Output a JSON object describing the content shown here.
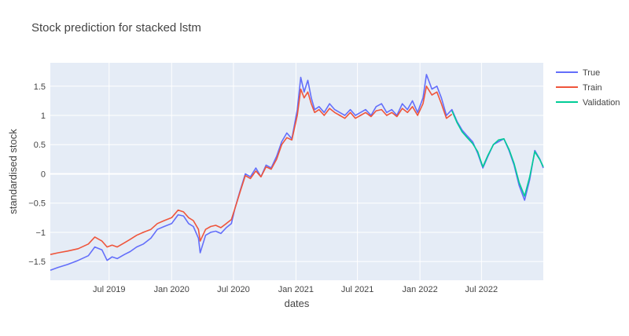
{
  "chart_data": {
    "type": "line",
    "title": "Stock prediction for stacked lstm",
    "xlabel": "dates",
    "ylabel": "standardised stock",
    "x_range": [
      "2019-01-09",
      "2022-12-30"
    ],
    "ylim": [
      -1.82,
      1.9
    ],
    "xticks": [
      {
        "date": "2019-07-01",
        "label": "Jul 2019"
      },
      {
        "date": "2020-01-01",
        "label": "Jan 2020"
      },
      {
        "date": "2020-07-01",
        "label": "Jul 2020"
      },
      {
        "date": "2021-01-01",
        "label": "Jan 2021"
      },
      {
        "date": "2021-07-01",
        "label": "Jul 2021"
      },
      {
        "date": "2022-01-01",
        "label": "Jan 2022"
      },
      {
        "date": "2022-07-01",
        "label": "Jul 2022"
      }
    ],
    "yticks": [
      {
        "value": 1.5,
        "label": "1.5"
      },
      {
        "value": 1,
        "label": "1"
      },
      {
        "value": 0.5,
        "label": "0.5"
      },
      {
        "value": 0,
        "label": "0"
      },
      {
        "value": -0.5,
        "label": "−0.5"
      },
      {
        "value": -1,
        "label": "−1"
      },
      {
        "value": -1.5,
        "label": "−1.5"
      }
    ],
    "grid": true,
    "legend_position": "top-right, outside plot",
    "colors": {
      "plot_bg": "#e5ecf6",
      "grid": "#ffffff",
      "True": "#636efa",
      "Train": "#ef553b",
      "Validation": "#00cc96"
    },
    "series": [
      {
        "name": "True",
        "color": "#636efa",
        "x": [
          "2019-01-09",
          "2019-02-01",
          "2019-03-01",
          "2019-04-01",
          "2019-05-01",
          "2019-05-20",
          "2019-06-10",
          "2019-06-25",
          "2019-07-10",
          "2019-07-25",
          "2019-08-15",
          "2019-09-01",
          "2019-09-20",
          "2019-10-10",
          "2019-11-01",
          "2019-11-20",
          "2019-12-10",
          "2020-01-01",
          "2020-01-20",
          "2020-02-05",
          "2020-02-20",
          "2020-03-05",
          "2020-03-20",
          "2020-03-25",
          "2020-04-10",
          "2020-04-25",
          "2020-05-10",
          "2020-05-25",
          "2020-06-10",
          "2020-06-25",
          "2020-07-05",
          "2020-07-20",
          "2020-08-05",
          "2020-08-20",
          "2020-09-05",
          "2020-09-20",
          "2020-10-05",
          "2020-10-20",
          "2020-11-05",
          "2020-11-20",
          "2020-12-05",
          "2020-12-20",
          "2021-01-05",
          "2021-01-15",
          "2021-01-25",
          "2021-02-05",
          "2021-02-15",
          "2021-02-25",
          "2021-03-10",
          "2021-03-25",
          "2021-04-10",
          "2021-04-25",
          "2021-05-10",
          "2021-05-25",
          "2021-06-10",
          "2021-06-25",
          "2021-07-10",
          "2021-07-25",
          "2021-08-10",
          "2021-08-25",
          "2021-09-10",
          "2021-09-25",
          "2021-10-10",
          "2021-10-25",
          "2021-11-10",
          "2021-11-25",
          "2021-12-10",
          "2021-12-25",
          "2022-01-10",
          "2022-01-20",
          "2022-02-05",
          "2022-02-20",
          "2022-03-05",
          "2022-03-20",
          "2022-04-05",
          "2022-04-20",
          "2022-05-05",
          "2022-05-20",
          "2022-06-05",
          "2022-06-20",
          "2022-07-05",
          "2022-07-20",
          "2022-08-05",
          "2022-08-20",
          "2022-09-05",
          "2022-09-20",
          "2022-10-05",
          "2022-10-20",
          "2022-11-05",
          "2022-11-20",
          "2022-12-05",
          "2022-12-20",
          "2022-12-30"
        ],
        "y": [
          -1.65,
          -1.6,
          -1.55,
          -1.48,
          -1.4,
          -1.25,
          -1.3,
          -1.48,
          -1.42,
          -1.45,
          -1.38,
          -1.33,
          -1.25,
          -1.2,
          -1.1,
          -0.95,
          -0.9,
          -0.85,
          -0.7,
          -0.72,
          -0.85,
          -0.9,
          -1.1,
          -1.35,
          -1.05,
          -1.0,
          -0.98,
          -1.02,
          -0.92,
          -0.85,
          -0.6,
          -0.3,
          0.0,
          -0.05,
          0.1,
          -0.05,
          0.15,
          0.1,
          0.3,
          0.55,
          0.7,
          0.6,
          1.1,
          1.65,
          1.4,
          1.6,
          1.3,
          1.1,
          1.15,
          1.05,
          1.2,
          1.1,
          1.05,
          1.0,
          1.1,
          1.0,
          1.05,
          1.1,
          1.0,
          1.15,
          1.2,
          1.05,
          1.1,
          1.0,
          1.2,
          1.1,
          1.25,
          1.05,
          1.3,
          1.7,
          1.45,
          1.5,
          1.3,
          1.0,
          1.1,
          0.9,
          0.75,
          0.65,
          0.55,
          0.35,
          0.1,
          0.3,
          0.5,
          0.55,
          0.6,
          0.4,
          0.15,
          -0.2,
          -0.45,
          -0.1,
          0.4,
          0.25,
          0.1
        ]
      },
      {
        "name": "Train",
        "color": "#ef553b",
        "x": [
          "2019-01-09",
          "2019-02-01",
          "2019-03-01",
          "2019-04-01",
          "2019-05-01",
          "2019-05-20",
          "2019-06-10",
          "2019-06-25",
          "2019-07-10",
          "2019-07-25",
          "2019-08-15",
          "2019-09-01",
          "2019-09-20",
          "2019-10-10",
          "2019-11-01",
          "2019-11-20",
          "2019-12-10",
          "2020-01-01",
          "2020-01-20",
          "2020-02-05",
          "2020-02-20",
          "2020-03-05",
          "2020-03-20",
          "2020-03-25",
          "2020-04-10",
          "2020-04-25",
          "2020-05-10",
          "2020-05-25",
          "2020-06-10",
          "2020-06-25",
          "2020-07-05",
          "2020-07-20",
          "2020-08-05",
          "2020-08-20",
          "2020-09-05",
          "2020-09-20",
          "2020-10-05",
          "2020-10-20",
          "2020-11-05",
          "2020-11-20",
          "2020-12-05",
          "2020-12-20",
          "2021-01-05",
          "2021-01-15",
          "2021-01-25",
          "2021-02-05",
          "2021-02-15",
          "2021-02-25",
          "2021-03-10",
          "2021-03-25",
          "2021-04-10",
          "2021-04-25",
          "2021-05-10",
          "2021-05-25",
          "2021-06-10",
          "2021-06-25",
          "2021-07-10",
          "2021-07-25",
          "2021-08-10",
          "2021-08-25",
          "2021-09-10",
          "2021-09-25",
          "2021-10-10",
          "2021-10-25",
          "2021-11-10",
          "2021-11-25",
          "2021-12-10",
          "2021-12-25",
          "2022-01-10",
          "2022-01-20",
          "2022-02-05",
          "2022-02-20",
          "2022-03-05",
          "2022-03-20",
          "2022-04-05"
        ],
        "y": [
          -1.38,
          -1.35,
          -1.32,
          -1.28,
          -1.2,
          -1.08,
          -1.15,
          -1.25,
          -1.22,
          -1.25,
          -1.18,
          -1.12,
          -1.05,
          -1.0,
          -0.95,
          -0.85,
          -0.8,
          -0.75,
          -0.62,
          -0.65,
          -0.75,
          -0.8,
          -0.95,
          -1.15,
          -0.95,
          -0.9,
          -0.88,
          -0.92,
          -0.85,
          -0.78,
          -0.6,
          -0.32,
          -0.03,
          -0.08,
          0.05,
          -0.05,
          0.12,
          0.08,
          0.25,
          0.5,
          0.62,
          0.58,
          1.0,
          1.45,
          1.3,
          1.4,
          1.2,
          1.05,
          1.1,
          1.0,
          1.12,
          1.05,
          1.0,
          0.95,
          1.05,
          0.95,
          1.0,
          1.05,
          0.98,
          1.08,
          1.1,
          1.0,
          1.05,
          0.98,
          1.12,
          1.05,
          1.15,
          1.0,
          1.2,
          1.5,
          1.35,
          1.4,
          1.2,
          0.95,
          1.02
        ]
      },
      {
        "name": "Validation",
        "color": "#00cc96",
        "x": [
          "2022-04-05",
          "2022-04-20",
          "2022-05-05",
          "2022-05-20",
          "2022-06-05",
          "2022-06-20",
          "2022-07-05",
          "2022-07-20",
          "2022-08-05",
          "2022-08-20",
          "2022-09-05",
          "2022-09-20",
          "2022-10-05",
          "2022-10-20",
          "2022-11-05",
          "2022-11-20",
          "2022-12-05",
          "2022-12-20",
          "2022-12-30"
        ],
        "y": [
          1.08,
          0.88,
          0.72,
          0.62,
          0.52,
          0.38,
          0.12,
          0.32,
          0.5,
          0.58,
          0.6,
          0.42,
          0.18,
          -0.15,
          -0.38,
          -0.05,
          0.38,
          0.24,
          0.12
        ]
      }
    ]
  }
}
